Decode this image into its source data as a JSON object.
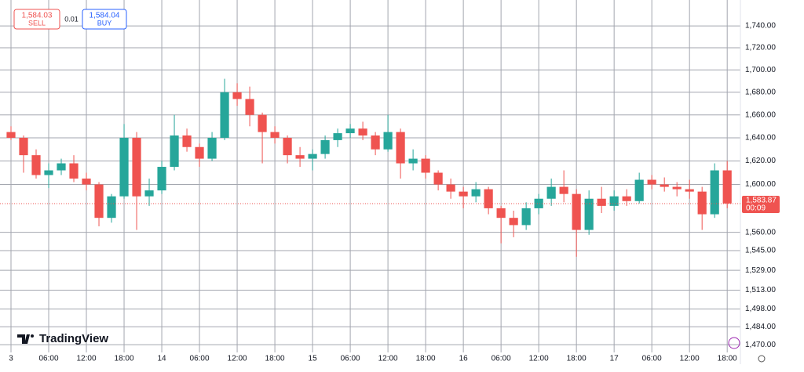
{
  "chart_data": {
    "type": "candlestick",
    "log_scale": true,
    "grid": true,
    "up_color": "#26a69a",
    "down_color": "#ef5350",
    "x": [
      0,
      2,
      4,
      6,
      8,
      10,
      12,
      14,
      16,
      18,
      20,
      22,
      24,
      26,
      28,
      30,
      32,
      34,
      36,
      38,
      40,
      42,
      44,
      46,
      48,
      50,
      52,
      54,
      56,
      58,
      60,
      62,
      64,
      66,
      68,
      70,
      72,
      74,
      76,
      78,
      80,
      82,
      84,
      86,
      88,
      90,
      92,
      94,
      96,
      98,
      100,
      102,
      104,
      106,
      108,
      110,
      112,
      114
    ],
    "open": [
      1645,
      1640,
      1625,
      1608,
      1612,
      1618,
      1605,
      1600,
      1572,
      1590,
      1640,
      1590,
      1595,
      1615,
      1642,
      1632,
      1622,
      1640,
      1680,
      1674,
      1660,
      1645,
      1640,
      1625,
      1622,
      1626,
      1638,
      1644,
      1648,
      1642,
      1630,
      1645,
      1618,
      1622,
      1610,
      1600,
      1594,
      1590,
      1596,
      1580,
      1572,
      1566,
      1580,
      1588,
      1598,
      1592,
      1562,
      1588,
      1582,
      1590,
      1586,
      1604,
      1600,
      1598,
      1596,
      1594,
      1575,
      1612
    ],
    "high": [
      1650,
      1642,
      1630,
      1618,
      1622,
      1625,
      1610,
      1602,
      1592,
      1652,
      1645,
      1605,
      1620,
      1660,
      1648,
      1635,
      1645,
      1692,
      1688,
      1685,
      1662,
      1650,
      1642,
      1632,
      1630,
      1642,
      1648,
      1652,
      1654,
      1645,
      1660,
      1648,
      1630,
      1625,
      1612,
      1605,
      1598,
      1602,
      1598,
      1582,
      1578,
      1585,
      1592,
      1605,
      1612,
      1596,
      1595,
      1598,
      1595,
      1596,
      1610,
      1608,
      1606,
      1602,
      1604,
      1598,
      1618,
      1620
    ],
    "low": [
      1638,
      1610,
      1605,
      1597,
      1608,
      1602,
      1595,
      1565,
      1568,
      1588,
      1562,
      1582,
      1592,
      1612,
      1628,
      1615,
      1620,
      1638,
      1668,
      1650,
      1618,
      1635,
      1618,
      1615,
      1612,
      1622,
      1632,
      1640,
      1638,
      1625,
      1628,
      1605,
      1612,
      1605,
      1595,
      1588,
      1580,
      1585,
      1575,
      1551,
      1556,
      1562,
      1575,
      1582,
      1585,
      1540,
      1558,
      1576,
      1578,
      1582,
      1584,
      1596,
      1594,
      1590,
      1588,
      1562,
      1572,
      1580
    ],
    "close": [
      1640,
      1625,
      1608,
      1612,
      1618,
      1605,
      1600,
      1572,
      1590,
      1640,
      1590,
      1595,
      1615,
      1642,
      1632,
      1622,
      1640,
      1680,
      1674,
      1660,
      1645,
      1640,
      1625,
      1622,
      1626,
      1638,
      1644,
      1648,
      1642,
      1630,
      1645,
      1618,
      1622,
      1610,
      1600,
      1594,
      1590,
      1596,
      1580,
      1572,
      1566,
      1580,
      1588,
      1598,
      1592,
      1562,
      1588,
      1582,
      1590,
      1586,
      1604,
      1600,
      1598,
      1596,
      1594,
      1575,
      1612,
      1584
    ],
    "xlim": [
      -1.75,
      116.1
    ],
    "xticks": [
      {
        "value": 0,
        "label": "3"
      },
      {
        "value": 6,
        "label": "06:00"
      },
      {
        "value": 12,
        "label": "12:00"
      },
      {
        "value": 18,
        "label": "18:00"
      },
      {
        "value": 24,
        "label": "14"
      },
      {
        "value": 30,
        "label": "06:00"
      },
      {
        "value": 36,
        "label": "12:00"
      },
      {
        "value": 42,
        "label": "18:00"
      },
      {
        "value": 48,
        "label": "15"
      },
      {
        "value": 54,
        "label": "06:00"
      },
      {
        "value": 60,
        "label": "12:00"
      },
      {
        "value": 66,
        "label": "18:00"
      },
      {
        "value": 72,
        "label": "16"
      },
      {
        "value": 78,
        "label": "06:00"
      },
      {
        "value": 84,
        "label": "12:00"
      },
      {
        "value": 90,
        "label": "18:00"
      },
      {
        "value": 96,
        "label": "17"
      },
      {
        "value": 102,
        "label": "06:00"
      },
      {
        "value": 108,
        "label": "12:00"
      },
      {
        "value": 114,
        "label": "18:00"
      }
    ],
    "ylim": [
      1464,
      1764
    ],
    "yticks": [
      {
        "value": 1740,
        "label": "1,740.00"
      },
      {
        "value": 1720,
        "label": "1,720.00"
      },
      {
        "value": 1700,
        "label": "1,700.00"
      },
      {
        "value": 1680,
        "label": "1,680.00"
      },
      {
        "value": 1660,
        "label": "1,660.00"
      },
      {
        "value": 1640,
        "label": "1,640.00"
      },
      {
        "value": 1620,
        "label": "1,620.00"
      },
      {
        "value": 1600,
        "label": "1,600.00"
      },
      {
        "value": 1560,
        "label": "1,560.00"
      },
      {
        "value": 1545,
        "label": "1,545.00"
      },
      {
        "value": 1529,
        "label": "1,529.00"
      },
      {
        "value": 1513,
        "label": "1,513.00"
      },
      {
        "value": 1498,
        "label": "1,498.00"
      },
      {
        "value": 1484,
        "label": "1,484.00"
      },
      {
        "value": 1470,
        "label": "1,470.00"
      }
    ],
    "last_price": 1583.87,
    "last_price_label": "1,583.87",
    "countdown": "00:09"
  },
  "trade_panel": {
    "sell_price": "1,584.03",
    "sell_label": "SELL",
    "spread": "0.01",
    "buy_price": "1,584.04",
    "buy_label": "BUY"
  },
  "brand": "TradingView"
}
